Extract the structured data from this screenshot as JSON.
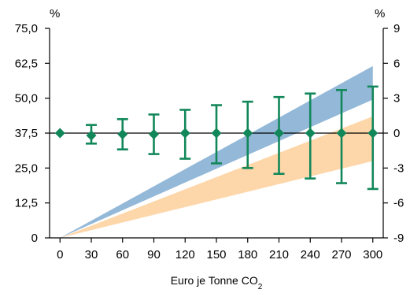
{
  "chart_data": {
    "type": "line",
    "xlabel": "Euro je Tonne CO",
    "xlabel_subscript": "2",
    "left_axis": {
      "unit": "%",
      "ylim": [
        0,
        75
      ],
      "ticks": [
        "0",
        "12,5",
        "25,0",
        "37,5",
        "50,0",
        "62,5",
        "75,0"
      ]
    },
    "right_axis": {
      "unit": "%",
      "ylim": [
        -9,
        9
      ],
      "ticks": [
        "-9",
        "-6",
        "-3",
        "0",
        "3",
        "6",
        "9"
      ]
    },
    "x_ticks": [
      "0",
      "30",
      "60",
      "90",
      "120",
      "150",
      "180",
      "210",
      "240",
      "270",
      "300"
    ],
    "x_values": [
      0,
      30,
      60,
      90,
      120,
      150,
      180,
      210,
      240,
      270,
      300
    ],
    "xlim": [
      -10,
      310
    ],
    "bands": [
      {
        "axis": "left",
        "color": "#fdd7aa",
        "x": [
          0,
          300
        ],
        "lower": [
          0,
          27.5
        ],
        "upper": [
          0,
          43.5
        ]
      },
      {
        "axis": "left",
        "color": "#93b8d8",
        "x": [
          0,
          300
        ],
        "lower": [
          0,
          49.5
        ],
        "upper": [
          0,
          61.5
        ]
      }
    ],
    "band_overlap_color": "#b9a89a",
    "series": [
      {
        "axis": "right",
        "color": "#12875a",
        "x": [
          0,
          30,
          60,
          90,
          120,
          150,
          180,
          210,
          240,
          270,
          300
        ],
        "values": [
          0,
          -0.2,
          -0.1,
          -0.1,
          0,
          0,
          0,
          0,
          0,
          0,
          0
        ],
        "err_low": [
          0,
          -0.9,
          -1.4,
          -1.8,
          -2.2,
          -2.6,
          -3.0,
          -3.5,
          -3.9,
          -4.3,
          -4.8
        ],
        "err_high": [
          0,
          0.7,
          1.2,
          1.6,
          2.0,
          2.4,
          2.7,
          3.1,
          3.4,
          3.7,
          4.0
        ]
      }
    ],
    "zero_line_color": "#000000"
  }
}
